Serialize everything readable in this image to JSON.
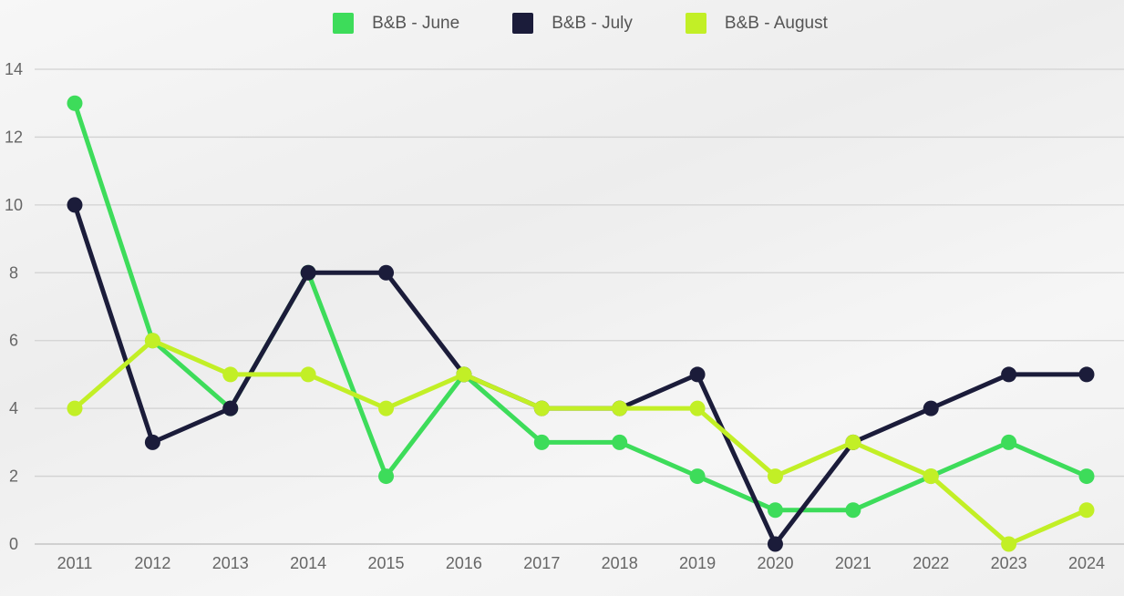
{
  "chart_data": {
    "type": "line",
    "title": "",
    "xlabel": "",
    "ylabel": "",
    "categories": [
      "2011",
      "2012",
      "2013",
      "2014",
      "2015",
      "2016",
      "2017",
      "2018",
      "2019",
      "2020",
      "2021",
      "2022",
      "2023",
      "2024"
    ],
    "ylim": [
      0,
      14
    ],
    "yticks": [
      "0",
      "2",
      "4",
      "6",
      "8",
      "10",
      "12",
      "14"
    ],
    "grid": true,
    "legend_position": "top-center",
    "series": [
      {
        "name": "B&B - June",
        "color": "#3ddc5a",
        "values": [
          13,
          6,
          4,
          8,
          2,
          5,
          3,
          3,
          2,
          1,
          1,
          2,
          3,
          2
        ]
      },
      {
        "name": "B&B - July",
        "color": "#1b1c3a",
        "values": [
          10,
          3,
          4,
          8,
          8,
          5,
          4,
          4,
          5,
          0,
          3,
          4,
          5,
          5
        ]
      },
      {
        "name": "B&B - August",
        "color": "#c2ef26",
        "values": [
          4,
          6,
          5,
          5,
          4,
          5,
          4,
          4,
          4,
          2,
          3,
          2,
          0,
          1
        ]
      }
    ]
  }
}
